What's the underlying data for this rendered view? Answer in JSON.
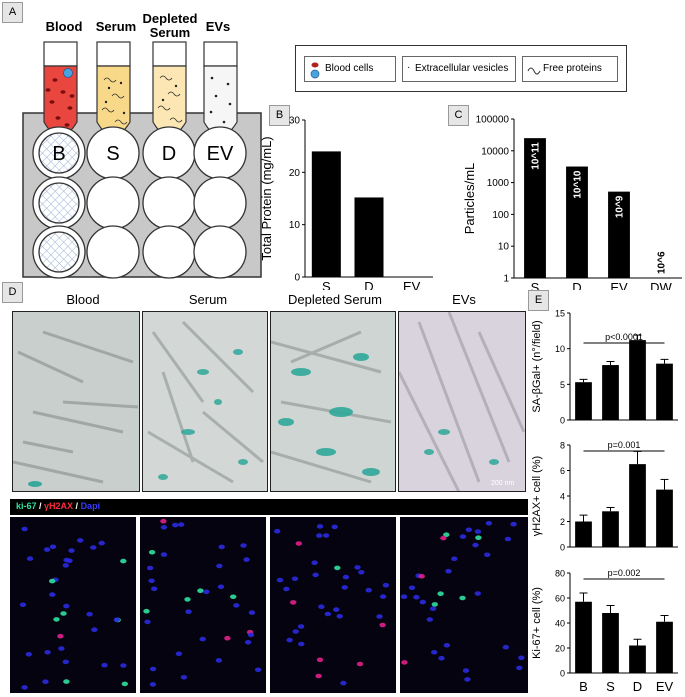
{
  "panels": {
    "a": "A",
    "b": "B",
    "c": "C",
    "d": "D",
    "e": "E"
  },
  "tubes": [
    {
      "label": "Blood",
      "fill": "#e8463f"
    },
    {
      "label": "Serum",
      "fill": "#f8d98a"
    },
    {
      "label": "Depleted Serum",
      "fill": "#fbe6b4"
    },
    {
      "label": "EVs",
      "fill": "#f6f6f6"
    }
  ],
  "wells": [
    "B",
    "S",
    "D",
    "EV"
  ],
  "legend": {
    "blood_cells": "Blood cells",
    "extracellular_vesicles": "Extracellular vesicles",
    "free_proteins": "Free proteins"
  },
  "micrographs": {
    "labels": [
      "Blood",
      "Serum",
      "Depleted Serum",
      "EVs"
    ],
    "scalebar": "200 nm",
    "stain_legend": {
      "ki67": "ki-67",
      "sep1": " / ",
      "h2ax": "γH2AX",
      "sep2": " / ",
      "dapi": "Dapi"
    }
  },
  "colors": {
    "bar": "#000000",
    "plate": "#c8c8c8",
    "xgal": "#2fa89a",
    "ki67": "#2fe0a0",
    "h2ax": "#e0208a",
    "dapi": "#2a2ae0"
  },
  "chart_data": [
    {
      "id": "B",
      "type": "bar",
      "categories": [
        "S",
        "D",
        "EV"
      ],
      "values": [
        24,
        15.2,
        0
      ],
      "ylabel": "Total Protein (mg/mL)",
      "yticks": [
        0,
        10,
        20,
        30
      ],
      "ylim": [
        0,
        30
      ]
    },
    {
      "id": "C",
      "type": "bar",
      "yscale": "log",
      "categories": [
        "S",
        "D",
        "EV",
        "DW"
      ],
      "values": [
        25000,
        3200,
        520,
        1
      ],
      "bar_labels": [
        "10^11",
        "10^10",
        "10^9",
        "10^6"
      ],
      "ylabel": "Particles/mL",
      "yticks": [
        "1",
        "10",
        "100",
        "1000",
        "10000",
        "100000"
      ],
      "ylim": [
        1,
        100000
      ]
    },
    {
      "id": "E1",
      "type": "bar",
      "categories": [
        "B",
        "S",
        "D",
        "EV"
      ],
      "values": [
        5.3,
        7.7,
        11.2,
        7.9
      ],
      "errors": [
        0.4,
        0.5,
        0.7,
        0.6
      ],
      "ylabel": "SA-βGal+ (n°/field)",
      "annotation": "p<0.0001",
      "yticks": [
        0,
        5,
        10,
        15
      ],
      "ylim": [
        0,
        15
      ]
    },
    {
      "id": "E2",
      "type": "bar",
      "categories": [
        "B",
        "S",
        "D",
        "EV"
      ],
      "values": [
        2.0,
        2.8,
        6.5,
        4.5
      ],
      "errors": [
        0.5,
        0.3,
        1.0,
        0.8
      ],
      "ylabel": "γH2AX+ cell (%)",
      "annotation": "p=0.001",
      "yticks": [
        0,
        2,
        4,
        6,
        8
      ],
      "ylim": [
        0,
        8
      ]
    },
    {
      "id": "E3",
      "type": "bar",
      "categories": [
        "B",
        "S",
        "D",
        "EV"
      ],
      "values": [
        57,
        48,
        22,
        41
      ],
      "errors": [
        7,
        6,
        5,
        5
      ],
      "ylabel": "Ki-67+ cell (%)",
      "annotation": "p=0.002",
      "yticks": [
        0,
        20,
        40,
        60,
        80
      ],
      "ylim": [
        0,
        80
      ]
    }
  ]
}
